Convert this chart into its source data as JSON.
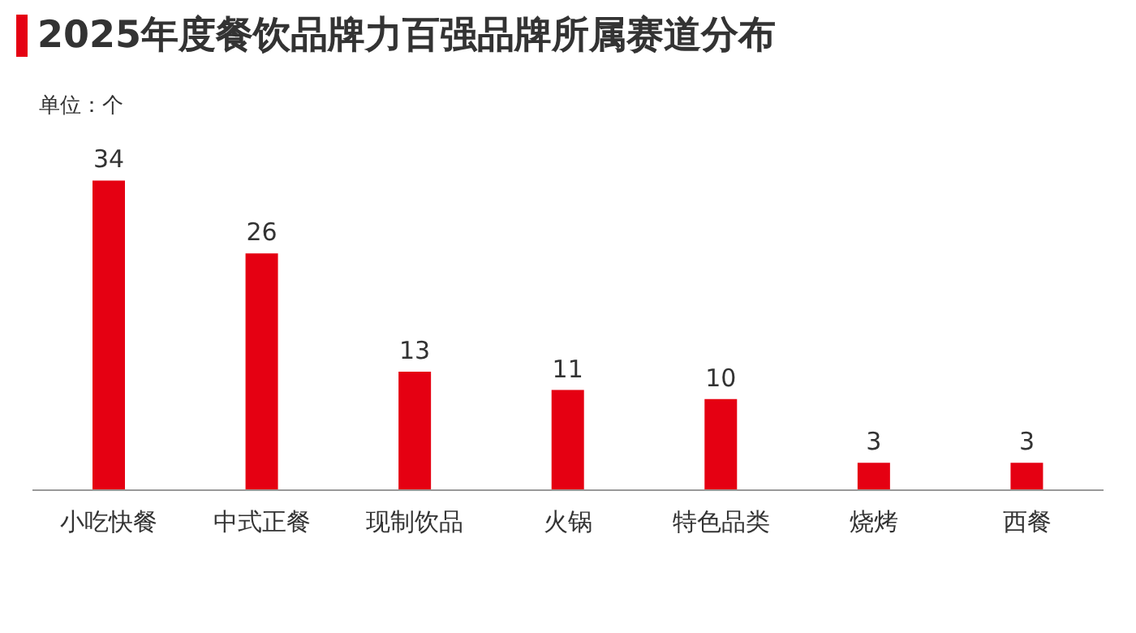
{
  "chart_data": {
    "type": "bar",
    "title": "2025年度餐饮品牌力百强品牌所属赛道分布",
    "annotations": [
      "单位：个"
    ],
    "categories": [
      "小吃快餐",
      "中式正餐",
      "现制饮品",
      "火锅",
      "特色品类",
      "烧烤",
      "西餐"
    ],
    "values": [
      34,
      26,
      13,
      11,
      10,
      3,
      3
    ],
    "color": "#e50012",
    "data_labels": true,
    "grid": false,
    "legend": false
  }
}
